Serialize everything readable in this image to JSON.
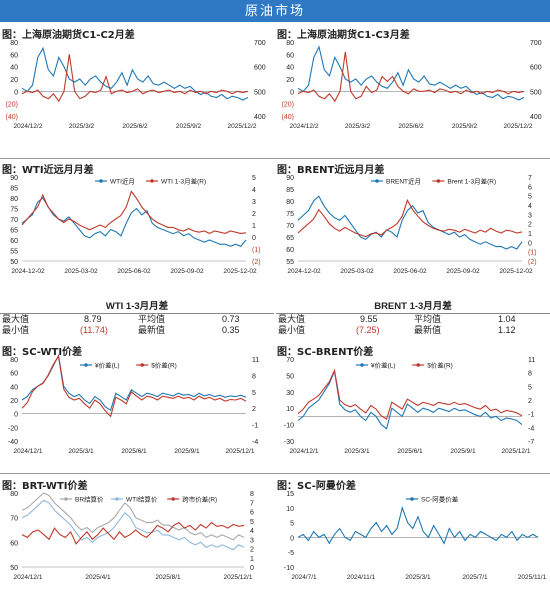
{
  "page_title": "原油市场",
  "colors": {
    "blue": "#1f77b4",
    "red": "#c0392b",
    "grey": "#a9a9a9",
    "lightblue": "#8fb7dc",
    "header": "#2e78c4"
  },
  "captions": {
    "c1": "图：上海原油期货C1-C2月差",
    "c2": "图：上海原油期货C1-C3月差",
    "c3": "图：WTI近远月月差",
    "c4": "图：BRENT近远月月差",
    "c5": "图：SC-WTI价差",
    "c6": "图：SC-BRENT价差",
    "c7": "图：BRT-WTI价差",
    "c8": "图：SC-阿曼价差"
  },
  "stats": {
    "wti": {
      "title": "WTI 1-3月月差",
      "max_label": "最大值",
      "max": "8.79",
      "avg_label": "平均值",
      "avg": "0.73",
      "min_label": "最小值",
      "min": "(11.74)",
      "last_label": "最新值",
      "last": "0.35"
    },
    "brent": {
      "title": "BRENT 1-3月月差",
      "max_label": "最大值",
      "max": "9.55",
      "avg_label": "平均值",
      "avg": "1.04",
      "min_label": "最小值",
      "min": "(7.25)",
      "last_label": "最新值",
      "last": "1.12"
    }
  },
  "chart_data": [
    {
      "id": "sc_c1c2",
      "type": "line",
      "left_ticks": [
        "80",
        "60",
        "40",
        "20",
        "0",
        "(20)",
        "(40)"
      ],
      "right_ticks": [
        "700",
        "600",
        "500",
        "400"
      ],
      "x_ticks": [
        "2024/12/2",
        "2025/3/2",
        "2025/6/2",
        "2025/9/2",
        "2025/12/2"
      ],
      "series": [
        {
          "color": "blue",
          "axis": "left",
          "values": [
            5,
            0,
            10,
            55,
            70,
            35,
            25,
            55,
            40,
            20,
            15,
            20,
            10,
            20,
            25,
            15,
            8,
            5,
            15,
            30,
            10,
            35,
            20,
            15,
            25,
            12,
            10,
            15,
            10,
            5,
            10,
            5,
            8,
            0,
            -5,
            -2,
            -8,
            -10,
            -5,
            -12,
            -8,
            -10,
            -14,
            -10
          ]
        },
        {
          "color": "red",
          "axis": "right",
          "values": [
            490,
            500,
            495,
            505,
            480,
            470,
            490,
            460,
            500,
            650,
            500,
            470,
            480,
            500,
            495,
            505,
            560,
            490,
            500,
            505,
            495,
            500,
            510,
            490,
            500,
            505,
            495,
            500,
            505,
            495,
            500,
            490,
            505,
            495,
            500,
            490,
            500,
            495,
            505,
            500,
            490,
            500,
            495,
            500
          ]
        }
      ]
    },
    {
      "id": "sc_c1c3",
      "type": "line",
      "left_ticks": [
        "80",
        "60",
        "40",
        "20",
        "0",
        "(20)",
        "(40)"
      ],
      "right_ticks": [
        "700",
        "600",
        "500",
        "400"
      ],
      "x_ticks": [
        "2024/12/2",
        "2025/3/2",
        "2025/6/2",
        "2025/9/2",
        "2025/12/2"
      ],
      "series": [
        {
          "color": "blue",
          "axis": "left",
          "values": [
            5,
            0,
            10,
            55,
            72,
            35,
            25,
            55,
            40,
            20,
            15,
            20,
            10,
            20,
            25,
            15,
            8,
            5,
            15,
            30,
            10,
            35,
            20,
            15,
            25,
            12,
            10,
            15,
            10,
            5,
            10,
            5,
            8,
            0,
            -5,
            -2,
            -8,
            -10,
            -5,
            -12,
            -8,
            -10,
            -14,
            -10
          ]
        },
        {
          "color": "red",
          "axis": "right",
          "values": [
            490,
            500,
            495,
            505,
            480,
            470,
            490,
            460,
            500,
            660,
            500,
            470,
            480,
            520,
            495,
            505,
            560,
            540,
            560,
            520,
            500,
            490,
            510,
            500,
            500,
            505,
            495,
            510,
            505,
            495,
            500,
            490,
            505,
            495,
            500,
            490,
            500,
            495,
            505,
            500,
            490,
            500,
            495,
            500
          ]
        }
      ]
    },
    {
      "id": "wti_spread",
      "type": "line",
      "left_ticks": [
        "90",
        "85",
        "80",
        "75",
        "70",
        "65",
        "60",
        "55",
        "50"
      ],
      "right_ticks": [
        "5",
        "4",
        "3",
        "2",
        "1",
        "0",
        "(1)",
        "(2)"
      ],
      "x_ticks": [
        "2024-12-02",
        "2025-03-02",
        "2025-06-02",
        "2025-09-02",
        "2025-12-02"
      ],
      "legend": [
        "WTI近月",
        "WTI 1-3月差(R)"
      ],
      "series": [
        {
          "color": "blue",
          "axis": "left",
          "values": [
            68,
            70,
            72,
            78,
            80,
            76,
            72,
            70,
            69,
            71,
            68,
            65,
            62,
            61,
            63,
            64,
            62,
            65,
            64,
            62,
            68,
            73,
            75,
            72,
            74,
            68,
            66,
            65,
            64,
            63,
            64,
            62,
            63,
            61,
            60,
            59,
            60,
            59,
            58,
            58,
            57,
            58,
            57,
            60
          ]
        },
        {
          "color": "red",
          "axis": "right",
          "values": [
            1,
            1.5,
            2,
            2.5,
            3.5,
            2.5,
            2,
            1.5,
            1.2,
            1.5,
            1.3,
            1,
            0.8,
            0.6,
            0.8,
            1,
            0.8,
            1.2,
            1.5,
            1.8,
            2.5,
            3.8,
            3.2,
            2.5,
            2,
            1.5,
            1.2,
            1,
            0.8,
            0.8,
            0.6,
            0.5,
            0.7,
            0.5,
            0.4,
            0.5,
            0.3,
            0.5,
            0.4,
            0.3,
            0.5,
            0.4,
            0.3,
            0.35
          ]
        }
      ]
    },
    {
      "id": "brent_spread",
      "type": "line",
      "left_ticks": [
        "90",
        "85",
        "80",
        "75",
        "70",
        "65",
        "60",
        "55"
      ],
      "right_ticks": [
        "7",
        "6",
        "5",
        "4",
        "3",
        "2",
        "1",
        "0",
        "(1)",
        "(2)"
      ],
      "x_ticks": [
        "2024-12-02",
        "2025-03-02",
        "2025-06-02",
        "2025-09-02",
        "2025-12-02"
      ],
      "legend": [
        "BRENT近月",
        "Brent 1-3月差(R)"
      ],
      "series": [
        {
          "color": "blue",
          "axis": "left",
          "values": [
            72,
            74,
            76,
            80,
            82,
            78,
            75,
            73,
            72,
            74,
            71,
            68,
            65,
            64,
            66,
            67,
            65,
            68,
            67,
            65,
            72,
            76,
            78,
            75,
            76,
            71,
            69,
            68,
            67,
            66,
            67,
            65,
            66,
            64,
            63,
            62,
            63,
            62,
            61,
            61,
            60,
            61,
            60,
            63
          ]
        },
        {
          "color": "red",
          "axis": "right",
          "values": [
            1,
            1.5,
            2,
            2.5,
            3.5,
            2.8,
            2,
            1.5,
            1.2,
            1.6,
            1.3,
            1,
            0.8,
            0.6,
            0.9,
            1,
            0.8,
            1.3,
            1.6,
            2,
            2.8,
            4.5,
            3.5,
            2.8,
            2.2,
            1.8,
            1.5,
            1.3,
            1.2,
            1.4,
            1.3,
            1.1,
            1.4,
            1.2,
            1,
            1.3,
            1.1,
            1.5,
            1.2,
            1,
            1.3,
            1.2,
            1.0,
            1.12
          ]
        }
      ]
    },
    {
      "id": "sc_wti",
      "type": "line",
      "left_ticks": [
        "80",
        "60",
        "40",
        "20",
        "0",
        "-20",
        "-40"
      ],
      "right_ticks": [
        "11",
        "8",
        "5",
        "2",
        "-1",
        "-4"
      ],
      "x_ticks": [
        "2024/12/1",
        "2025/3/1",
        "2025/6/1",
        "2025/9/1",
        "2025/12/1"
      ],
      "legend": [
        "¥价差(L)",
        "$价差(R)"
      ],
      "series": [
        {
          "color": "blue",
          "axis": "left",
          "values": [
            20,
            25,
            35,
            40,
            45,
            55,
            70,
            85,
            40,
            30,
            25,
            28,
            20,
            15,
            25,
            20,
            10,
            5,
            30,
            25,
            20,
            35,
            30,
            25,
            30,
            28,
            25,
            30,
            28,
            26,
            30,
            27,
            28,
            25,
            30,
            26,
            28,
            25,
            27,
            24,
            26,
            25,
            27,
            24
          ]
        },
        {
          "color": "red",
          "axis": "right",
          "values": [
            2,
            3,
            5,
            6,
            6.5,
            8,
            10,
            11.5,
            5.5,
            4,
            3.5,
            3.8,
            2.8,
            2,
            3.5,
            2.8,
            1.5,
            0.5,
            4,
            3.5,
            2.8,
            5,
            4.2,
            3.5,
            4.2,
            4,
            3.5,
            4.2,
            4,
            3.8,
            4.2,
            3.8,
            4,
            3.5,
            4.2,
            3.7,
            4,
            3.5,
            3.8,
            3.3,
            3.6,
            3.5,
            3.8,
            3.3
          ]
        }
      ]
    },
    {
      "id": "sc_brent",
      "type": "line",
      "left_ticks": [
        "70",
        "50",
        "30",
        "10",
        "-10",
        "-30"
      ],
      "right_ticks": [
        "11",
        "8",
        "5",
        "2",
        "-1",
        "-4",
        "-7"
      ],
      "x_ticks": [
        "2024/12/1",
        "2025/3/1",
        "2025/6/1",
        "2025/9/1",
        "2025/12/1"
      ],
      "legend": [
        "¥价差(L)",
        "$价差(R)"
      ],
      "series": [
        {
          "color": "blue",
          "axis": "left",
          "values": [
            -5,
            0,
            10,
            15,
            20,
            30,
            40,
            55,
            15,
            8,
            5,
            8,
            0,
            -5,
            5,
            0,
            -10,
            -15,
            10,
            5,
            0,
            15,
            10,
            5,
            10,
            8,
            5,
            10,
            8,
            6,
            10,
            7,
            8,
            5,
            2,
            0,
            5,
            -2,
            0,
            -5,
            -2,
            -3,
            -5,
            -10
          ]
        },
        {
          "color": "red",
          "axis": "right",
          "values": [
            -1,
            0,
            1.5,
            2.2,
            3,
            4.5,
            6,
            8.5,
            2,
            1,
            0.5,
            1,
            0,
            -0.8,
            0.8,
            0,
            -1.5,
            -2.2,
            1.5,
            0.8,
            0,
            2.2,
            1.5,
            0.8,
            1.5,
            1.2,
            0.8,
            1.5,
            1.2,
            1,
            1.5,
            1,
            1.2,
            0.8,
            0.3,
            0,
            0.8,
            -0.3,
            0,
            -0.8,
            -0.3,
            -0.5,
            -0.8,
            -1.5
          ]
        }
      ]
    },
    {
      "id": "brt_wti",
      "type": "line",
      "left_ticks": [
        "80",
        "70",
        "60",
        "50"
      ],
      "right_ticks": [
        "8",
        "7",
        "6",
        "5",
        "4",
        "3",
        "2",
        "1",
        "0"
      ],
      "x_ticks": [
        "2024/12/1",
        "2025/4/1",
        "2025/8/1",
        "2025/12/1"
      ],
      "legend": [
        "BR结算价",
        "WTI结算价",
        "跨市价差(R)"
      ],
      "series": [
        {
          "color": "grey",
          "axis": "left",
          "values": [
            73,
            74,
            76,
            78,
            80,
            79,
            76,
            74,
            72,
            70,
            67,
            65,
            66,
            64,
            66,
            67,
            68,
            70,
            73,
            76,
            74,
            70,
            69,
            68,
            68,
            69,
            67,
            67,
            66,
            65,
            66,
            64,
            63,
            64,
            62,
            63,
            62,
            63,
            62,
            61,
            63,
            62
          ]
        },
        {
          "color": "lightblue",
          "axis": "left",
          "values": [
            70,
            71,
            73,
            75,
            77,
            76,
            73,
            71,
            69,
            67,
            64,
            61,
            62,
            60,
            62,
            63,
            64,
            66,
            69,
            72,
            70,
            66,
            65,
            64,
            64,
            65,
            63,
            63,
            62,
            61,
            62,
            60,
            59,
            60,
            58,
            59,
            58,
            59,
            58,
            57,
            59,
            58
          ]
        },
        {
          "color": "red",
          "axis": "right",
          "values": [
            3.5,
            3.2,
            3.8,
            4,
            3.5,
            3,
            4.2,
            3.5,
            3.2,
            3.8,
            2.5,
            3.2,
            3.8,
            3,
            3.5,
            4.2,
            3.6,
            3,
            3.8,
            3.2,
            3.5,
            4,
            3.5,
            3.2,
            3.8,
            4.5,
            4.2,
            3.8,
            4.5,
            4.8,
            4.2,
            4.5,
            4,
            4.6,
            4.2,
            4.8,
            4.4,
            4.5,
            4.2,
            4.6,
            4.4,
            4.5
          ]
        }
      ]
    },
    {
      "id": "sc_oman",
      "type": "line",
      "left_ticks": [
        "15",
        "10",
        "5",
        "0",
        "-5",
        "-10"
      ],
      "right_ticks": [],
      "x_ticks": [
        "2024/7/1",
        "2024/11/1",
        "2025/3/1",
        "2025/7/1",
        "2025/11/1"
      ],
      "legend": [
        "SC-阿曼价差"
      ],
      "series": [
        {
          "color": "blue",
          "axis": "left",
          "values": [
            0,
            1,
            -1,
            2,
            0,
            1,
            -2,
            1,
            3,
            0,
            -1,
            2,
            1,
            0,
            3,
            5,
            2,
            4,
            1,
            3,
            10,
            5,
            3,
            7,
            2,
            0,
            4,
            1,
            -2,
            3,
            0,
            2,
            -1,
            1,
            0,
            2,
            1,
            0,
            -1,
            1,
            0,
            2,
            -1,
            1,
            0,
            1,
            0
          ]
        }
      ]
    }
  ]
}
